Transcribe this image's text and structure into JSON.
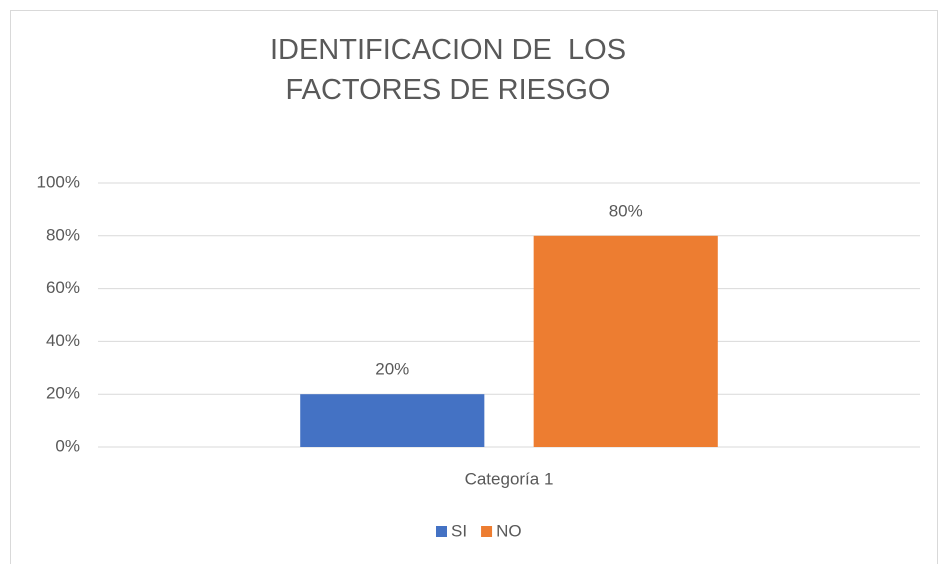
{
  "chart_data": {
    "type": "bar",
    "title": "IDENTIFICACION DE  LOS FACTORES DE RIESGO",
    "categories": [
      "Categoría 1"
    ],
    "series": [
      {
        "name": "SI",
        "color": "#4472c4",
        "values": [
          20
        ],
        "value_labels": [
          "20%"
        ]
      },
      {
        "name": "NO",
        "color": "#ed7d31",
        "values": [
          80
        ],
        "value_labels": [
          "80%"
        ]
      }
    ],
    "ylim": [
      0,
      100
    ],
    "yticks": [
      {
        "value": 0,
        "label": "0%"
      },
      {
        "value": 20,
        "label": "20%"
      },
      {
        "value": 40,
        "label": "40%"
      },
      {
        "value": 60,
        "label": "60%"
      },
      {
        "value": 80,
        "label": "80%"
      },
      {
        "value": 100,
        "label": "100%"
      }
    ],
    "grid": true,
    "legend": "bottom"
  }
}
